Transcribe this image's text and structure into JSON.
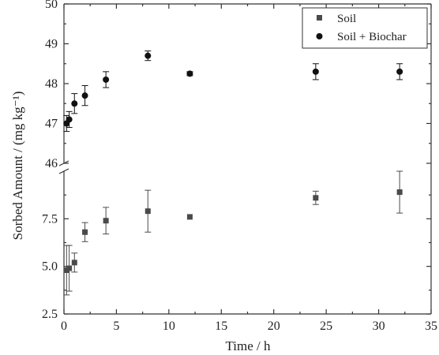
{
  "chart_data": {
    "type": "scatter",
    "title": "",
    "xlabel": "Time / h",
    "ylabel": "Sorbed Amount / (mg kg⁻¹)",
    "xlim": [
      0,
      35
    ],
    "x_ticks": [
      "0",
      "5",
      "10",
      "15",
      "20",
      "25",
      "30",
      "35"
    ],
    "y_axis_broken": true,
    "y_lower_range": [
      2.5,
      10.0
    ],
    "y_lower_ticks": [
      "2.5",
      "5.0",
      "7.5"
    ],
    "y_upper_range": [
      46,
      50
    ],
    "y_upper_ticks": [
      "46",
      "47",
      "48",
      "49",
      "50"
    ],
    "legend_position": "top-right",
    "grid": false,
    "series": [
      {
        "name": "Soil",
        "marker": "square",
        "color": "#4a4a4a",
        "points": [
          {
            "x": 0.25,
            "y": 4.8,
            "err": 1.3
          },
          {
            "x": 0.5,
            "y": 4.9,
            "err": 1.2
          },
          {
            "x": 1,
            "y": 5.2,
            "err": 0.5
          },
          {
            "x": 2,
            "y": 6.8,
            "err": 0.5
          },
          {
            "x": 4,
            "y": 7.4,
            "err": 0.7
          },
          {
            "x": 8,
            "y": 7.9,
            "err": 1.1
          },
          {
            "x": 12,
            "y": 7.6,
            "err": 0.0
          },
          {
            "x": 24,
            "y": 8.6,
            "err": 0.35
          },
          {
            "x": 32,
            "y": 8.9,
            "err": 1.1
          }
        ]
      },
      {
        "name": "Soil + Biochar",
        "marker": "circle",
        "color": "#111111",
        "points": [
          {
            "x": 0.25,
            "y": 47.0,
            "err": 0.2
          },
          {
            "x": 0.5,
            "y": 47.1,
            "err": 0.2
          },
          {
            "x": 1,
            "y": 47.5,
            "err": 0.25
          },
          {
            "x": 2,
            "y": 47.7,
            "err": 0.25
          },
          {
            "x": 4,
            "y": 48.1,
            "err": 0.2
          },
          {
            "x": 8,
            "y": 48.7,
            "err": 0.12
          },
          {
            "x": 12,
            "y": 48.25,
            "err": 0.05
          },
          {
            "x": 24,
            "y": 48.3,
            "err": 0.2
          },
          {
            "x": 32,
            "y": 48.3,
            "err": 0.2
          }
        ]
      }
    ]
  }
}
